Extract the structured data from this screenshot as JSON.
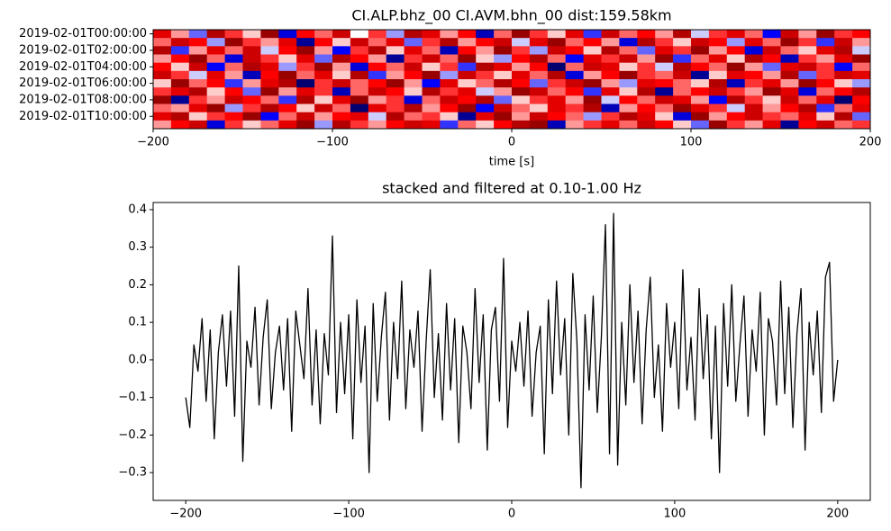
{
  "chart_data": [
    {
      "type": "heatmap",
      "title": "CI.ALP.bhz_00 CI.AVM.bhn_00  dist:159.58km",
      "xlabel": "time [s]",
      "categories": [
        "2019-02-01T00:00:00",
        null,
        "2019-02-01T02:00:00",
        null,
        "2019-02-01T04:00:00",
        null,
        "2019-02-01T06:00:00",
        null,
        "2019-02-01T08:00:00",
        null,
        "2019-02-01T10:00:00",
        null
      ],
      "xlim": [
        -200,
        200
      ],
      "xticks": [
        {
          "value": -200,
          "label": "−200"
        },
        {
          "value": -100,
          "label": "−100"
        },
        0,
        100,
        200
      ],
      "colormap": "seismic",
      "clim": [
        -1,
        1
      ],
      "values": [
        [
          0.6,
          0.2,
          -0.3,
          0.8,
          0.4,
          0.1,
          0.9,
          -0.6,
          0.5,
          0.3,
          0.7,
          0.0,
          0.4,
          -0.2,
          0.8,
          0.6,
          0.2,
          0.5,
          -0.7,
          0.3,
          0.9,
          0.4,
          0.1,
          0.6,
          -0.4,
          0.7,
          0.3,
          0.5,
          0.2,
          0.8,
          -0.1,
          0.4,
          0.6,
          0.3,
          -0.5,
          0.7,
          0.2,
          0.9,
          0.4,
          0.5
        ],
        [
          0.3,
          0.7,
          0.5,
          -0.2,
          0.9,
          0.4,
          0.2,
          0.6,
          -0.8,
          0.5,
          0.1,
          0.7,
          0.3,
          0.6,
          -0.3,
          0.4,
          0.8,
          0.2,
          0.5,
          0.7,
          -0.1,
          0.6,
          0.9,
          0.3,
          0.5,
          0.2,
          -0.6,
          0.8,
          0.4,
          0.1,
          0.7,
          0.5,
          -0.2,
          0.6,
          0.3,
          0.9,
          0.4,
          -0.4,
          0.7,
          0.2
        ],
        [
          0.8,
          -0.4,
          0.2,
          0.6,
          0.3,
          0.7,
          -0.1,
          0.5,
          0.9,
          0.2,
          -0.5,
          0.4,
          0.8,
          0.1,
          0.6,
          0.3,
          -0.7,
          0.5,
          0.2,
          0.9,
          0.4,
          -0.2,
          0.7,
          0.5,
          0.1,
          0.8,
          0.3,
          -0.3,
          0.6,
          0.4,
          0.9,
          0.2,
          0.5,
          -0.6,
          0.7,
          0.3,
          0.1,
          0.6,
          0.8,
          -0.1
        ],
        [
          0.2,
          0.5,
          0.9,
          0.3,
          -0.6,
          0.7,
          0.4,
          0.1,
          0.6,
          -0.3,
          0.8,
          0.5,
          0.2,
          -0.8,
          0.4,
          0.7,
          0.3,
          0.9,
          0.1,
          -0.2,
          0.5,
          0.8,
          0.3,
          -0.5,
          0.6,
          0.4,
          0.7,
          0.2,
          0.9,
          -0.4,
          0.3,
          0.6,
          0.1,
          0.8,
          0.5,
          -0.7,
          0.4,
          0.2,
          0.6,
          0.9
        ],
        [
          0.5,
          0.1,
          0.7,
          -0.5,
          0.3,
          0.8,
          0.6,
          -0.2,
          0.4,
          0.9,
          0.2,
          -0.6,
          0.5,
          0.3,
          0.7,
          0.1,
          0.4,
          -0.4,
          0.8,
          0.6,
          0.2,
          0.5,
          -0.9,
          0.3,
          0.7,
          0.6,
          0.1,
          0.4,
          -0.1,
          0.8,
          0.5,
          0.3,
          0.9,
          0.2,
          -0.3,
          0.6,
          0.7,
          0.4,
          -0.5,
          0.3
        ],
        [
          0.7,
          0.4,
          -0.1,
          0.6,
          0.2,
          -0.7,
          0.5,
          0.9,
          0.3,
          0.6,
          0.1,
          0.8,
          -0.4,
          0.2,
          0.5,
          0.9,
          -0.2,
          0.7,
          0.4,
          0.1,
          0.6,
          0.3,
          0.8,
          -0.6,
          0.2,
          0.5,
          0.9,
          0.4,
          0.3,
          0.7,
          -0.8,
          0.1,
          0.6,
          0.5,
          0.2,
          0.8,
          -0.3,
          0.4,
          0.7,
          0.6
        ],
        [
          0.1,
          0.9,
          0.3,
          0.5,
          -0.4,
          0.2,
          0.6,
          0.8,
          -0.9,
          0.4,
          0.7,
          0.3,
          0.5,
          0.9,
          0.2,
          -0.5,
          0.6,
          0.1,
          0.3,
          0.8,
          0.5,
          -0.3,
          0.4,
          0.7,
          0.9,
          0.2,
          -0.2,
          0.6,
          0.5,
          0.3,
          0.1,
          0.8,
          -0.7,
          0.4,
          0.6,
          0.2,
          0.9,
          0.5,
          0.1,
          -0.2
        ],
        [
          0.4,
          0.6,
          0.8,
          0.1,
          0.5,
          -0.3,
          0.9,
          0.2,
          0.6,
          0.4,
          -0.7,
          0.3,
          0.7,
          0.5,
          0.1,
          0.8,
          0.4,
          0.6,
          -0.1,
          0.2,
          0.9,
          0.7,
          0.3,
          0.5,
          -0.4,
          0.6,
          0.1,
          0.8,
          -0.8,
          0.3,
          0.5,
          0.7,
          0.4,
          0.2,
          0.9,
          0.6,
          -0.6,
          0.3,
          0.5,
          0.8
        ],
        [
          0.9,
          -0.8,
          0.4,
          0.2,
          0.7,
          0.5,
          0.3,
          -0.4,
          0.8,
          0.1,
          0.6,
          0.9,
          0.2,
          0.4,
          -0.6,
          0.3,
          0.7,
          0.5,
          0.8,
          -0.3,
          0.1,
          0.4,
          0.6,
          0.2,
          0.9,
          -0.1,
          0.5,
          0.3,
          0.7,
          0.6,
          0.2,
          -0.5,
          0.8,
          0.4,
          0.1,
          0.7,
          0.3,
          0.6,
          -0.9,
          0.5
        ],
        [
          0.3,
          0.2,
          0.6,
          0.9,
          -0.2,
          0.4,
          0.8,
          0.5,
          0.1,
          0.7,
          0.3,
          -0.9,
          0.6,
          0.4,
          0.8,
          0.2,
          0.5,
          0.9,
          -0.5,
          0.7,
          0.3,
          0.1,
          0.6,
          0.4,
          0.8,
          -0.7,
          0.2,
          0.5,
          0.3,
          0.9,
          0.6,
          0.4,
          -0.1,
          0.7,
          0.2,
          0.5,
          0.8,
          -0.4,
          0.3,
          0.6
        ],
        [
          0.6,
          0.8,
          0.1,
          0.4,
          0.5,
          0.9,
          -0.5,
          0.3,
          0.7,
          0.2,
          0.5,
          0.6,
          -0.1,
          0.8,
          0.3,
          0.4,
          0.1,
          -0.8,
          0.6,
          0.9,
          0.2,
          0.7,
          0.5,
          0.3,
          -0.2,
          0.4,
          0.8,
          0.6,
          0.1,
          -0.6,
          0.9,
          0.2,
          0.5,
          0.7,
          0.4,
          0.3,
          0.6,
          0.1,
          0.8,
          -0.3
        ],
        [
          0.2,
          0.5,
          0.7,
          -0.6,
          0.4,
          0.1,
          0.3,
          0.6,
          0.9,
          -0.2,
          0.8,
          0.4,
          0.2,
          0.5,
          0.7,
          0.6,
          -0.4,
          0.3,
          0.1,
          0.5,
          0.8,
          0.9,
          -0.7,
          0.2,
          0.4,
          0.6,
          0.3,
          0.7,
          0.5,
          0.1,
          -0.3,
          0.9,
          0.4,
          0.2,
          0.6,
          -0.8,
          0.5,
          0.7,
          0.3,
          0.4
        ]
      ]
    },
    {
      "type": "line",
      "title": "stacked and filtered at 0.10-1.00 Hz",
      "xlim": [
        -220,
        220
      ],
      "xticks": [
        {
          "value": -200,
          "label": "−200"
        },
        {
          "value": -100,
          "label": "−100"
        },
        0,
        100,
        200
      ],
      "ylim": [
        -0.374,
        0.419
      ],
      "yticks": [
        {
          "value": -0.3,
          "label": "−0.3"
        },
        {
          "value": -0.2,
          "label": "−0.2"
        },
        {
          "value": -0.1,
          "label": "−0.1"
        },
        {
          "value": 0,
          "label": "0.0"
        },
        0.1,
        0.2,
        0.3,
        0.4
      ],
      "x": [
        -200,
        -197.5,
        -195,
        -192.5,
        -190,
        -187.5,
        -185,
        -182.5,
        -180,
        -177.5,
        -175,
        -172.5,
        -170,
        -167.5,
        -165,
        -162.5,
        -160,
        -157.5,
        -155,
        -152.5,
        -150,
        -147.5,
        -145,
        -142.5,
        -140,
        -137.5,
        -135,
        -132.5,
        -130,
        -127.5,
        -125,
        -122.5,
        -120,
        -117.5,
        -115,
        -112.5,
        -110,
        -107.5,
        -105,
        -102.5,
        -100,
        -97.5,
        -95,
        -92.5,
        -90,
        -87.5,
        -85,
        -82.5,
        -80,
        -77.5,
        -75,
        -72.5,
        -70,
        -67.5,
        -65,
        -62.5,
        -60,
        -57.5,
        -55,
        -52.5,
        -50,
        -47.5,
        -45,
        -42.5,
        -40,
        -37.5,
        -35,
        -32.5,
        -30,
        -27.5,
        -25,
        -22.5,
        -20,
        -17.5,
        -15,
        -12.5,
        -10,
        -7.5,
        -5,
        -2.5,
        0,
        2.5,
        5,
        7.5,
        10,
        12.5,
        15,
        17.5,
        20,
        22.5,
        25,
        27.5,
        30,
        32.5,
        35,
        37.5,
        40,
        42.5,
        45,
        47.5,
        50,
        52.5,
        55,
        57.5,
        60,
        62.5,
        65,
        67.5,
        70,
        72.5,
        75,
        77.5,
        80,
        82.5,
        85,
        87.5,
        90,
        92.5,
        95,
        97.5,
        100,
        102.5,
        105,
        107.5,
        110,
        112.5,
        115,
        117.5,
        120,
        122.5,
        125,
        127.5,
        130,
        132.5,
        135,
        137.5,
        140,
        142.5,
        145,
        147.5,
        150,
        152.5,
        155,
        157.5,
        160,
        162.5,
        165,
        167.5,
        170,
        172.5,
        175,
        177.5,
        180,
        182.5,
        185,
        187.5,
        190,
        192.5,
        195,
        197.5,
        200
      ],
      "series": [
        {
          "color": "#000000",
          "values": [
            -0.1,
            -0.18,
            0.04,
            -0.03,
            0.11,
            -0.11,
            0.08,
            -0.21,
            0.02,
            0.12,
            -0.07,
            0.13,
            -0.15,
            0.25,
            -0.27,
            0.05,
            -0.02,
            0.14,
            -0.12,
            0.06,
            0.16,
            -0.13,
            0.02,
            0.09,
            -0.08,
            0.11,
            -0.19,
            0.13,
            0.04,
            -0.05,
            0.19,
            -0.12,
            0.08,
            -0.17,
            0.07,
            -0.04,
            0.33,
            -0.14,
            0.1,
            -0.09,
            0.12,
            -0.21,
            0.16,
            -0.06,
            0.09,
            -0.3,
            0.15,
            -0.11,
            0.06,
            0.18,
            -0.16,
            0.1,
            -0.05,
            0.21,
            -0.13,
            0.08,
            -0.02,
            0.13,
            -0.19,
            0.05,
            0.24,
            -0.1,
            0.07,
            -0.16,
            0.15,
            -0.08,
            0.11,
            -0.22,
            0.09,
            0.02,
            -0.13,
            0.19,
            -0.06,
            0.12,
            -0.24,
            0.08,
            0.14,
            -0.11,
            0.27,
            -0.18,
            0.05,
            -0.03,
            0.1,
            -0.07,
            0.13,
            -0.15,
            0.02,
            0.09,
            -0.25,
            0.16,
            -0.09,
            0.21,
            -0.04,
            0.11,
            -0.2,
            0.23,
            0.05,
            -0.34,
            0.12,
            -0.08,
            0.17,
            -0.14,
            0.06,
            0.36,
            -0.25,
            0.39,
            -0.28,
            0.1,
            -0.12,
            0.2,
            -0.06,
            0.13,
            -0.17,
            0.08,
            0.22,
            -0.1,
            0.04,
            -0.19,
            0.15,
            -0.02,
            0.1,
            -0.13,
            0.24,
            -0.08,
            0.06,
            -0.16,
            0.19,
            -0.05,
            0.12,
            -0.21,
            0.09,
            -0.3,
            0.15,
            -0.07,
            0.2,
            -0.11,
            0.04,
            0.17,
            -0.15,
            0.08,
            -0.03,
            0.18,
            -0.2,
            0.11,
            0.05,
            -0.12,
            0.21,
            -0.09,
            0.14,
            -0.18,
            0.07,
            0.19,
            -0.24,
            0.1,
            -0.04,
            0.13,
            -0.14,
            0.22,
            0.26,
            -0.11,
            0.0
          ]
        }
      ]
    }
  ]
}
